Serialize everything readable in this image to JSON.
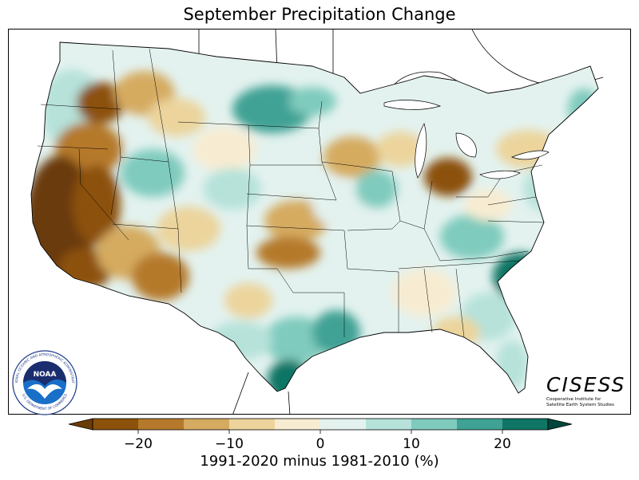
{
  "title": "September Precipitation Change",
  "map": {
    "region": "Contiguous United States",
    "variable": "Precipitation change",
    "month": "September"
  },
  "colorbar": {
    "label": "1991-2020 minus 1981-2010 (%)",
    "ticks": [
      "−20",
      "−10",
      "0",
      "10",
      "20"
    ],
    "tick_values": [
      -20,
      -10,
      0,
      10,
      20
    ],
    "bin_edges": [
      -25,
      -20,
      -15,
      -10,
      -5,
      0,
      5,
      10,
      15,
      20,
      25
    ],
    "colors": [
      "#8c510a",
      "#b5792b",
      "#d5ab61",
      "#ecd49c",
      "#f7ecd2",
      "#e3f2ef",
      "#b6e2da",
      "#7fcbbd",
      "#3fa294",
      "#0f7564"
    ],
    "under_color": "#6b3b07",
    "over_color": "#01463a"
  },
  "logos": {
    "noaa": {
      "text": "NOAA",
      "ring_top": "NATIONAL OCEANIC AND ATMOSPHERIC ADMINISTRATION",
      "ring_bottom": "U.S. DEPARTMENT OF COMMERCE"
    },
    "cisess": {
      "name": "CISESS",
      "line1": "Cooperative Institute for",
      "line2": "Satellite Earth System Studies"
    }
  }
}
